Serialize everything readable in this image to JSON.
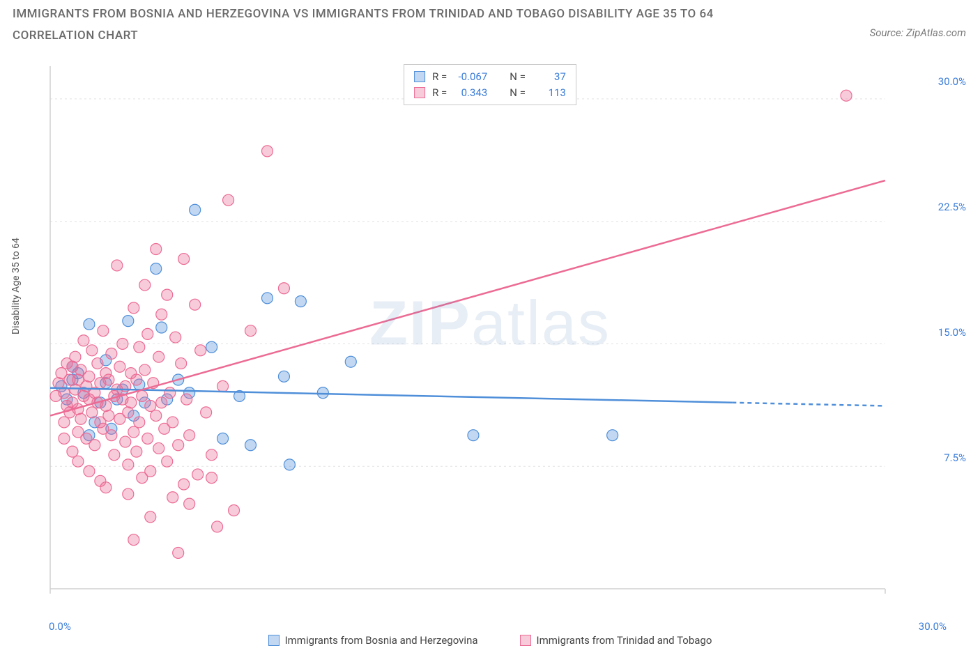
{
  "title_line1": "IMMIGRANTS FROM BOSNIA AND HERZEGOVINA VS IMMIGRANTS FROM TRINIDAD AND TOBAGO DISABILITY AGE 35 TO 64",
  "title_line2": "CORRELATION CHART",
  "source_label": "Source: ZipAtlas.com",
  "y_axis_label": "Disability Age 35 to 64",
  "watermark_zip": "ZIP",
  "watermark_atlas": "atlas",
  "chart": {
    "type": "scatter",
    "background_color": "#ffffff",
    "grid_color": "#e3e3e3",
    "axis_color": "#d0d0d0",
    "xlim": [
      0,
      30
    ],
    "ylim": [
      0,
      32
    ],
    "x_ticks": [
      0.0,
      30.0
    ],
    "x_tick_labels": [
      "0.0%",
      "30.0%"
    ],
    "y_ticks": [
      7.5,
      15.0,
      22.5,
      30.0
    ],
    "y_tick_labels": [
      "7.5%",
      "15.0%",
      "22.5%",
      "30.0%"
    ],
    "gridlines_y": [
      7.5,
      15.0,
      22.5,
      30.0
    ],
    "marker_radius": 8,
    "marker_fill_opacity": 0.35,
    "marker_stroke_width": 1.2,
    "line_width": 2.5,
    "dash_pattern": "6,5"
  },
  "series": [
    {
      "key": "bosnia",
      "label": "Immigrants from Bosnia and Herzegovina",
      "color": "#4f8fd9",
      "fill": "rgba(79,143,217,0.35)",
      "R_label": "R =",
      "R": "-0.067",
      "N_label": "N =",
      "N": "37",
      "regression": {
        "x1": 0,
        "y1": 12.3,
        "x2": 30,
        "y2": 11.2,
        "solid_until_x": 24.5
      },
      "points": [
        [
          0.4,
          12.4
        ],
        [
          0.6,
          11.6
        ],
        [
          0.8,
          13.6
        ],
        [
          1.0,
          13.2
        ],
        [
          1.2,
          12.0
        ],
        [
          1.4,
          16.2
        ],
        [
          1.4,
          9.4
        ],
        [
          1.6,
          10.2
        ],
        [
          1.8,
          11.4
        ],
        [
          2.0,
          14.0
        ],
        [
          2.0,
          12.6
        ],
        [
          2.2,
          9.8
        ],
        [
          2.4,
          11.6
        ],
        [
          2.6,
          12.2
        ],
        [
          2.8,
          16.4
        ],
        [
          3.0,
          10.6
        ],
        [
          3.2,
          12.5
        ],
        [
          3.4,
          11.4
        ],
        [
          3.8,
          19.6
        ],
        [
          4.0,
          16.0
        ],
        [
          4.2,
          11.6
        ],
        [
          4.6,
          12.8
        ],
        [
          5.0,
          12.0
        ],
        [
          5.2,
          23.2
        ],
        [
          5.8,
          14.8
        ],
        [
          6.2,
          9.2
        ],
        [
          6.8,
          11.8
        ],
        [
          7.2,
          8.8
        ],
        [
          7.8,
          17.8
        ],
        [
          8.4,
          13.0
        ],
        [
          8.6,
          7.6
        ],
        [
          9.0,
          17.6
        ],
        [
          9.8,
          12.0
        ],
        [
          10.8,
          13.9
        ],
        [
          15.2,
          9.4
        ],
        [
          20.2,
          9.4
        ],
        [
          0.8,
          12.8
        ]
      ]
    },
    {
      "key": "trinidad",
      "label": "Immigrants from Trinidad and Tobago",
      "color": "#ec6b94",
      "fill": "rgba(236,107,148,0.35)",
      "R_label": "R =",
      "R": "0.343",
      "N_label": "N =",
      "N": "113",
      "regression": {
        "x1": 0,
        "y1": 10.6,
        "x2": 30,
        "y2": 25.0,
        "solid_until_x": 30
      },
      "points": [
        [
          0.2,
          11.8
        ],
        [
          0.3,
          12.6
        ],
        [
          0.4,
          13.2
        ],
        [
          0.5,
          10.2
        ],
        [
          0.5,
          12.0
        ],
        [
          0.6,
          11.2
        ],
        [
          0.6,
          13.8
        ],
        [
          0.7,
          12.8
        ],
        [
          0.7,
          10.8
        ],
        [
          0.8,
          13.6
        ],
        [
          0.8,
          11.4
        ],
        [
          0.9,
          12.2
        ],
        [
          0.9,
          14.2
        ],
        [
          1.0,
          9.6
        ],
        [
          1.0,
          11.0
        ],
        [
          1.0,
          12.8
        ],
        [
          1.1,
          13.4
        ],
        [
          1.1,
          10.4
        ],
        [
          1.2,
          11.8
        ],
        [
          1.2,
          15.2
        ],
        [
          1.3,
          9.2
        ],
        [
          1.3,
          12.4
        ],
        [
          1.4,
          11.6
        ],
        [
          1.4,
          13.0
        ],
        [
          1.5,
          10.8
        ],
        [
          1.5,
          14.6
        ],
        [
          1.6,
          12.0
        ],
        [
          1.6,
          8.8
        ],
        [
          1.7,
          11.4
        ],
        [
          1.7,
          13.8
        ],
        [
          1.8,
          10.2
        ],
        [
          1.8,
          12.6
        ],
        [
          1.9,
          9.8
        ],
        [
          1.9,
          15.8
        ],
        [
          2.0,
          11.2
        ],
        [
          2.0,
          13.2
        ],
        [
          2.1,
          10.6
        ],
        [
          2.1,
          12.8
        ],
        [
          2.2,
          14.4
        ],
        [
          2.2,
          9.4
        ],
        [
          2.3,
          11.8
        ],
        [
          2.3,
          8.2
        ],
        [
          2.4,
          19.8
        ],
        [
          2.4,
          12.2
        ],
        [
          2.5,
          10.4
        ],
        [
          2.5,
          13.6
        ],
        [
          2.6,
          11.6
        ],
        [
          2.6,
          15.0
        ],
        [
          2.7,
          9.0
        ],
        [
          2.7,
          12.4
        ],
        [
          2.8,
          10.8
        ],
        [
          2.8,
          7.6
        ],
        [
          2.9,
          13.2
        ],
        [
          2.9,
          11.4
        ],
        [
          3.0,
          17.2
        ],
        [
          3.0,
          9.6
        ],
        [
          3.1,
          12.8
        ],
        [
          3.1,
          8.4
        ],
        [
          3.2,
          10.2
        ],
        [
          3.2,
          14.8
        ],
        [
          3.3,
          11.8
        ],
        [
          3.3,
          6.8
        ],
        [
          3.4,
          13.4
        ],
        [
          3.4,
          18.6
        ],
        [
          3.5,
          9.2
        ],
        [
          3.5,
          15.6
        ],
        [
          3.6,
          11.2
        ],
        [
          3.6,
          7.2
        ],
        [
          3.7,
          12.6
        ],
        [
          3.8,
          10.6
        ],
        [
          3.8,
          20.8
        ],
        [
          3.9,
          8.6
        ],
        [
          3.9,
          14.2
        ],
        [
          4.0,
          16.8
        ],
        [
          4.0,
          11.4
        ],
        [
          4.1,
          9.8
        ],
        [
          4.2,
          18.0
        ],
        [
          4.2,
          7.8
        ],
        [
          4.3,
          12.0
        ],
        [
          4.4,
          10.2
        ],
        [
          4.4,
          5.6
        ],
        [
          4.5,
          15.4
        ],
        [
          4.6,
          8.8
        ],
        [
          4.7,
          13.8
        ],
        [
          4.8,
          20.2
        ],
        [
          4.8,
          6.4
        ],
        [
          4.9,
          11.6
        ],
        [
          5.0,
          9.4
        ],
        [
          5.2,
          17.4
        ],
        [
          5.3,
          7.0
        ],
        [
          5.4,
          14.6
        ],
        [
          5.6,
          10.8
        ],
        [
          5.8,
          6.8
        ],
        [
          5.8,
          8.2
        ],
        [
          6.0,
          3.8
        ],
        [
          6.2,
          12.4
        ],
        [
          6.4,
          23.8
        ],
        [
          6.6,
          4.8
        ],
        [
          7.2,
          15.8
        ],
        [
          7.8,
          26.8
        ],
        [
          8.4,
          18.4
        ],
        [
          4.6,
          2.2
        ],
        [
          3.0,
          3.0
        ],
        [
          2.0,
          6.2
        ],
        [
          1.4,
          7.2
        ],
        [
          0.8,
          8.4
        ],
        [
          0.5,
          9.2
        ],
        [
          28.6,
          30.2
        ],
        [
          5.0,
          5.2
        ],
        [
          3.6,
          4.4
        ],
        [
          2.8,
          5.8
        ],
        [
          1.8,
          6.6
        ],
        [
          1.0,
          7.8
        ]
      ]
    }
  ],
  "x_left_label": "0.0%",
  "x_right_label": "30.0%"
}
